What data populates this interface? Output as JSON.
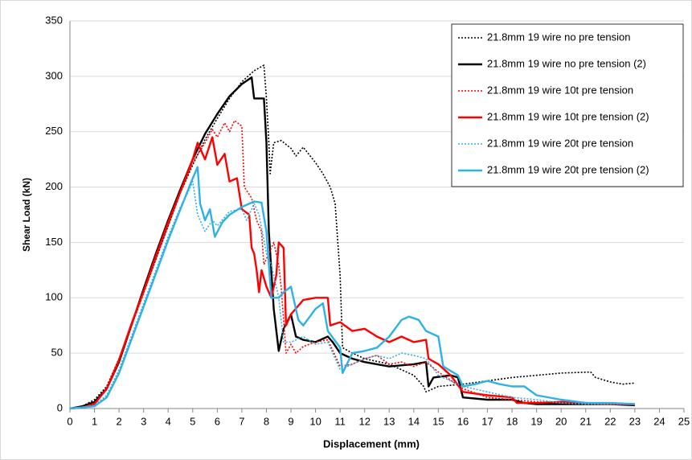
{
  "chart_data": {
    "type": "line",
    "xlabel": "Displacement (mm)",
    "ylabel": "Shear Load (kN)",
    "xlim": [
      0,
      25
    ],
    "ylim": [
      0,
      350
    ],
    "xticks": [
      0,
      1,
      2,
      3,
      4,
      5,
      6,
      7,
      8,
      9,
      10,
      11,
      12,
      13,
      14,
      15,
      16,
      17,
      18,
      19,
      20,
      21,
      22,
      23,
      24,
      25
    ],
    "yticks": [
      0,
      50,
      100,
      150,
      200,
      250,
      300,
      350
    ],
    "grid": true,
    "legend": "top-right",
    "series": [
      {
        "name": "21.8mm 19 wire no pre tension",
        "color": "#000000",
        "style": "dotted",
        "x": [
          0,
          0.5,
          1,
          1.5,
          2,
          2.5,
          3,
          3.5,
          4,
          4.5,
          5,
          5.5,
          6,
          6.5,
          7,
          7.5,
          7.9,
          8.0,
          8.1,
          8.15,
          8.3,
          8.6,
          9,
          9.2,
          9.5,
          10,
          10.3,
          10.6,
          10.8,
          11,
          11.1,
          11.5,
          12,
          13,
          13.5,
          14,
          14.4,
          14.5,
          15,
          16,
          17,
          18,
          19,
          20,
          21.2,
          21.4,
          22,
          22.5,
          23
        ],
        "values": [
          0,
          2,
          8,
          20,
          45,
          75,
          105,
          135,
          165,
          195,
          220,
          243,
          262,
          280,
          295,
          305,
          310,
          280,
          240,
          212,
          240,
          242,
          235,
          228,
          236,
          222,
          212,
          200,
          185,
          120,
          55,
          50,
          45,
          40,
          35,
          30,
          20,
          15,
          20,
          22,
          25,
          28,
          30,
          32,
          33,
          28,
          24,
          22,
          23
        ]
      },
      {
        "name": "21.8mm 19 wire no pre tension (2)",
        "color": "#000000",
        "style": "solid",
        "x": [
          0,
          0.5,
          1,
          1.5,
          2,
          2.5,
          3,
          3.5,
          4,
          4.5,
          5,
          5.5,
          6,
          6.5,
          7,
          7.4,
          7.5,
          7.9,
          8.0,
          8.1,
          8.3,
          8.5,
          8.7,
          9.0,
          9.2,
          9.5,
          10,
          10.5,
          10.7,
          11,
          11.5,
          12,
          13,
          14,
          14.5,
          14.6,
          14.8,
          15.5,
          15.8,
          16,
          17,
          18,
          18.5,
          19,
          20,
          21,
          22,
          23
        ],
        "values": [
          0,
          2,
          6,
          18,
          42,
          75,
          108,
          140,
          170,
          198,
          225,
          248,
          266,
          282,
          293,
          299,
          280,
          280,
          240,
          160,
          90,
          52,
          72,
          85,
          65,
          62,
          60,
          65,
          60,
          50,
          45,
          42,
          38,
          40,
          42,
          20,
          28,
          30,
          28,
          10,
          8,
          8,
          5,
          4,
          4,
          4,
          4,
          3
        ]
      },
      {
        "name": "21.8mm 19 wire 10t pre tension",
        "color": "#ff0000",
        "style": "dotted",
        "x": [
          0,
          0.5,
          1,
          1.5,
          2,
          2.5,
          3,
          3.5,
          4,
          4.5,
          5,
          5.5,
          5.8,
          6,
          6.3,
          6.5,
          6.7,
          7,
          7.1,
          7.4,
          7.6,
          7.8,
          7.9,
          8.1,
          8.3,
          8.5,
          8.6,
          8.8,
          9,
          9.2,
          9.5,
          10,
          10.5,
          11,
          11.5,
          12,
          12.5,
          13,
          13.5,
          14,
          14.5,
          15,
          16,
          17,
          18,
          19,
          20,
          21,
          22,
          23
        ],
        "values": [
          0,
          1,
          5,
          17,
          42,
          74,
          104,
          135,
          165,
          195,
          222,
          240,
          252,
          245,
          258,
          250,
          260,
          255,
          200,
          190,
          170,
          160,
          130,
          140,
          150,
          130,
          110,
          50,
          58,
          50,
          56,
          60,
          62,
          38,
          40,
          45,
          48,
          40,
          42,
          38,
          42,
          33,
          18,
          10,
          8,
          6,
          5,
          4,
          4,
          4
        ]
      },
      {
        "name": "21.8mm 19 wire 10t pre tension (2)",
        "color": "#ff0000",
        "style": "solid",
        "x": [
          0,
          0.5,
          1,
          1.5,
          2,
          2.5,
          3,
          3.5,
          4,
          4.5,
          5,
          5.2,
          5.5,
          5.8,
          6,
          6.3,
          6.5,
          6.8,
          7,
          7.3,
          7.4,
          7.5,
          7.6,
          7.7,
          7.8,
          8,
          8.2,
          8.4,
          8.5,
          8.7,
          8.8,
          9,
          9.5,
          10,
          10.5,
          10.6,
          11,
          11.5,
          12,
          12.5,
          13,
          13.5,
          14,
          14.5,
          14.6,
          15,
          15.5,
          16,
          17,
          18,
          18.2,
          19,
          20,
          21,
          22,
          23
        ],
        "values": [
          0,
          1,
          4,
          18,
          44,
          76,
          106,
          138,
          168,
          196,
          225,
          240,
          225,
          245,
          220,
          230,
          205,
          208,
          180,
          175,
          145,
          140,
          125,
          105,
          125,
          110,
          100,
          120,
          150,
          145,
          75,
          85,
          98,
          100,
          100,
          75,
          78,
          70,
          72,
          65,
          60,
          65,
          60,
          62,
          45,
          40,
          30,
          15,
          12,
          10,
          5,
          5,
          6,
          5,
          4,
          4
        ]
      },
      {
        "name": "21.8mm 19 wire 20t pre tension",
        "color": "#2eb1e6",
        "style": "dotted",
        "x": [
          0,
          0.5,
          1,
          1.5,
          2,
          2.5,
          3,
          3.5,
          4,
          4.5,
          4.8,
          5,
          5.2,
          5.5,
          5.8,
          6,
          6.5,
          7,
          7.2,
          7.5,
          7.7,
          8,
          8.2,
          8.5,
          8.7,
          9,
          9.5,
          10,
          10.5,
          11,
          11.5,
          12,
          12.5,
          13,
          13.5,
          14,
          14.5,
          15,
          16,
          17,
          18,
          19,
          20,
          21,
          22,
          23
        ],
        "values": [
          0,
          1,
          3,
          12,
          35,
          65,
          95,
          125,
          155,
          182,
          195,
          205,
          175,
          160,
          170,
          165,
          178,
          180,
          170,
          185,
          175,
          140,
          130,
          100,
          60,
          60,
          65,
          58,
          60,
          35,
          40,
          45,
          48,
          45,
          50,
          48,
          45,
          30,
          20,
          15,
          10,
          8,
          5,
          4,
          4,
          4
        ]
      },
      {
        "name": "21.8mm 19 wire 20t pre tension (2)",
        "color": "#2eb1e6",
        "style": "solid",
        "x": [
          0,
          0.5,
          1,
          1.5,
          2,
          2.5,
          3,
          3.5,
          4,
          4.5,
          5,
          5.2,
          5.3,
          5.5,
          5.7,
          5.9,
          6.2,
          6.5,
          7,
          7.5,
          7.8,
          8,
          8.2,
          8.5,
          8.7,
          9,
          9.3,
          9.5,
          10,
          10.3,
          10.5,
          11,
          11.1,
          11.5,
          12,
          12.5,
          13,
          13.5,
          13.8,
          14.2,
          14.5,
          15,
          15.2,
          15.8,
          16,
          16.5,
          17,
          17.5,
          18,
          18.5,
          19,
          20,
          21,
          22,
          23
        ],
        "values": [
          0,
          1,
          2,
          10,
          32,
          62,
          92,
          122,
          152,
          180,
          208,
          218,
          185,
          170,
          180,
          155,
          168,
          175,
          182,
          187,
          186,
          160,
          100,
          100,
          105,
          110,
          80,
          75,
          90,
          95,
          70,
          55,
          32,
          50,
          52,
          55,
          65,
          80,
          83,
          80,
          70,
          65,
          38,
          30,
          20,
          22,
          25,
          22,
          20,
          20,
          12,
          8,
          5,
          5,
          4
        ]
      }
    ]
  }
}
